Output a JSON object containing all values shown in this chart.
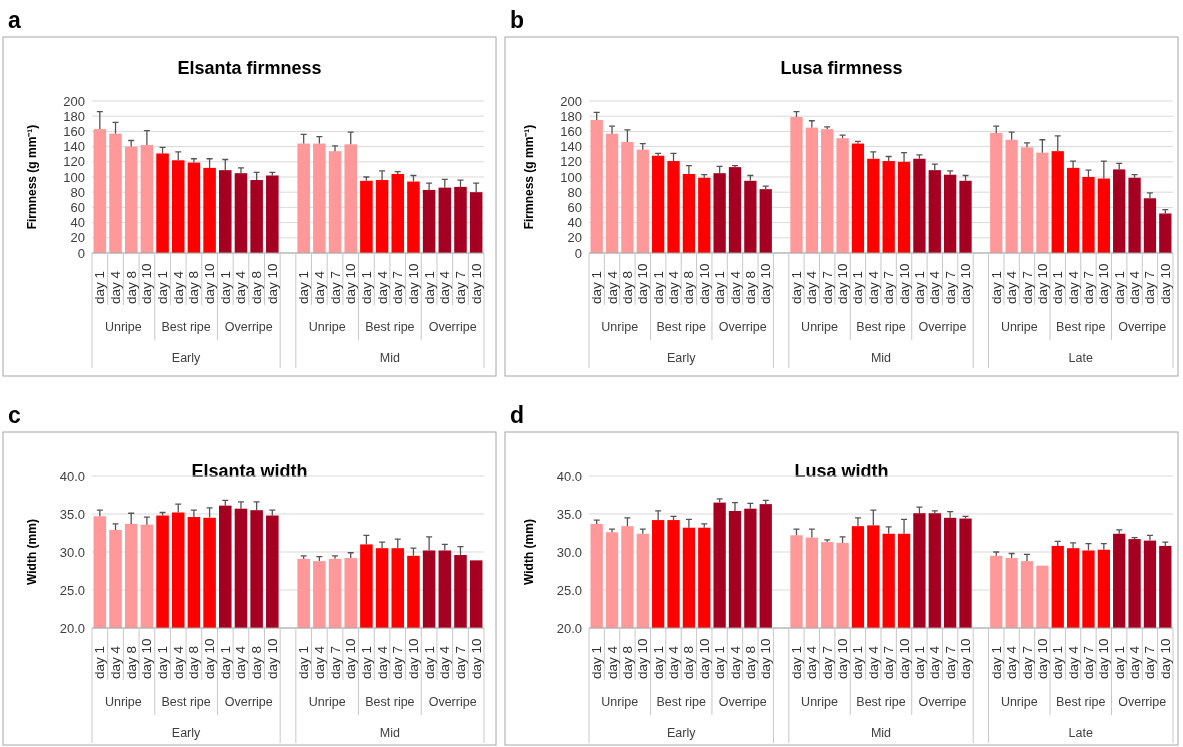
{
  "chart_data": [
    {
      "type": "bar",
      "title": "Elsanta firmness",
      "ylabel": "Firmness (g mm⁻¹)",
      "annotations": [
        "a",
        "Unripe",
        "Best ripe",
        "Overripe",
        "Early",
        "Unripe",
        "Best ripe",
        "Overripe",
        "Mid"
      ],
      "categories": [
        "day 1",
        "day 4",
        "day 8",
        "day 10",
        "day 1",
        "day 4",
        "day 8",
        "day 10",
        "day 1",
        "day 4",
        "day 8",
        "day 10",
        null,
        "day 1",
        "day 4",
        "day 7",
        "day 10",
        "day 1",
        "day 4",
        "day 7",
        "day 10",
        "day 1",
        "day 4",
        "day 7",
        "day 10"
      ],
      "values": [
        163,
        157,
        140,
        142,
        131,
        122,
        119,
        112,
        109,
        105,
        96,
        102,
        null,
        144,
        144,
        134,
        143,
        95,
        96,
        104,
        94,
        83,
        86,
        87,
        80
      ],
      "errors": [
        [
          163,
          186
        ],
        [
          157,
          172
        ],
        [
          140,
          148
        ],
        [
          142,
          161
        ],
        [
          131,
          139
        ],
        [
          122,
          133
        ],
        [
          119,
          124
        ],
        [
          112,
          124
        ],
        [
          109,
          123
        ],
        [
          105,
          112
        ],
        [
          96,
          106
        ],
        [
          102,
          106
        ],
        null,
        [
          144,
          156
        ],
        [
          144,
          153
        ],
        [
          134,
          141
        ],
        [
          143,
          159
        ],
        [
          95,
          100
        ],
        [
          96,
          108
        ],
        [
          104,
          107
        ],
        [
          94,
          102
        ],
        [
          83,
          92
        ],
        [
          86,
          97
        ],
        [
          87,
          96
        ],
        [
          80,
          92
        ]
      ],
      "colors": [
        "#ff9999",
        "#ff9999",
        "#ff9999",
        "#ff9999",
        "#ff0000",
        "#ff0000",
        "#ff0000",
        "#ff0000",
        "#a50021",
        "#a50021",
        "#a50021",
        "#a50021",
        null,
        "#ff9999",
        "#ff9999",
        "#ff9999",
        "#ff9999",
        "#ff0000",
        "#ff0000",
        "#ff0000",
        "#ff0000",
        "#a50021",
        "#a50021",
        "#a50021",
        "#a50021"
      ],
      "ylim": [
        0,
        200
      ],
      "yticks": [
        0,
        20,
        40,
        60,
        80,
        100,
        120,
        140,
        160,
        180,
        200
      ],
      "grid": "y"
    },
    {
      "type": "bar",
      "title": "Lusa firmness",
      "ylabel": "Firmness (g mm⁻¹)",
      "annotations": [
        "b",
        "Unripe",
        "Best ripe",
        "Overripe",
        "Early",
        "Unripe",
        "Best ripe",
        "Overripe",
        "Mid",
        "Unripe",
        "Best ripe",
        "Overripe",
        "Late"
      ],
      "categories": [
        "day 1",
        "day 4",
        "day 8",
        "day 10",
        "day 1",
        "day 4",
        "day 8",
        "day 10",
        "day 1",
        "day 4",
        "day 8",
        "day 10",
        null,
        "day 1",
        "day 4",
        "day 7",
        "day 10",
        "day 1",
        "day 4",
        "day 7",
        "day 10",
        "day 1",
        "day 4",
        "day 7",
        "day 10",
        null,
        "day 1",
        "day 4",
        "day 7",
        "day 10",
        "day 1",
        "day 4",
        "day 7",
        "day 10",
        "day 1",
        "day 4",
        "day 7",
        "day 10"
      ],
      "values": [
        175,
        157,
        146,
        136,
        128,
        121,
        104,
        99,
        105,
        113,
        95,
        84,
        null,
        179,
        165,
        163,
        151,
        144,
        124,
        121,
        120,
        124,
        109,
        103,
        95,
        null,
        158,
        149,
        139,
        132,
        134,
        112,
        100,
        98,
        110,
        99,
        72,
        52
      ],
      "errors": [
        [
          175,
          185
        ],
        [
          157,
          167
        ],
        [
          146,
          162
        ],
        [
          136,
          144
        ],
        [
          128,
          131
        ],
        [
          121,
          131
        ],
        [
          104,
          115
        ],
        [
          99,
          103
        ],
        [
          105,
          114
        ],
        [
          113,
          115
        ],
        [
          95,
          102
        ],
        [
          84,
          88
        ],
        null,
        [
          179,
          186
        ],
        [
          165,
          174
        ],
        [
          163,
          166
        ],
        [
          151,
          155
        ],
        [
          144,
          147
        ],
        [
          124,
          133
        ],
        [
          121,
          127
        ],
        [
          120,
          132
        ],
        [
          124,
          129
        ],
        [
          109,
          117
        ],
        [
          103,
          108
        ],
        [
          95,
          102
        ],
        null,
        [
          158,
          167
        ],
        [
          149,
          159
        ],
        [
          139,
          145
        ],
        [
          132,
          149
        ],
        [
          134,
          154
        ],
        [
          112,
          121
        ],
        [
          100,
          109
        ],
        [
          98,
          121
        ],
        [
          110,
          118
        ],
        [
          99,
          103
        ],
        [
          72,
          79
        ],
        [
          52,
          57
        ]
      ],
      "colors": [
        "#ff9999",
        "#ff9999",
        "#ff9999",
        "#ff9999",
        "#ff0000",
        "#ff0000",
        "#ff0000",
        "#ff0000",
        "#a50021",
        "#a50021",
        "#a50021",
        "#a50021",
        null,
        "#ff9999",
        "#ff9999",
        "#ff9999",
        "#ff9999",
        "#ff0000",
        "#ff0000",
        "#ff0000",
        "#ff0000",
        "#a50021",
        "#a50021",
        "#a50021",
        "#a50021",
        null,
        "#ff9999",
        "#ff9999",
        "#ff9999",
        "#ff9999",
        "#ff0000",
        "#ff0000",
        "#ff0000",
        "#ff0000",
        "#a50021",
        "#a50021",
        "#a50021",
        "#a50021"
      ],
      "ylim": [
        0,
        200
      ],
      "yticks": [
        0,
        20,
        40,
        60,
        80,
        100,
        120,
        140,
        160,
        180,
        200
      ],
      "grid": "y"
    },
    {
      "type": "bar",
      "title": "Elsanta width",
      "ylabel": "Width (mm)",
      "annotations": [
        "c",
        "Unripe",
        "Best ripe",
        "Overripe",
        "Early",
        "Unripe",
        "Best ripe",
        "Overripe",
        "Mid"
      ],
      "categories": [
        "day 1",
        "day 4",
        "day 8",
        "day 10",
        "day 1",
        "day 4",
        "day 8",
        "day 10",
        "day 1",
        "day 4",
        "day 8",
        "day 10",
        null,
        "day 1",
        "day 4",
        "day 7",
        "day 10",
        "day 1",
        "day 4",
        "day 7",
        "day 10",
        "day 1",
        "day 4",
        "day 7",
        "day 10"
      ],
      "values": [
        34.7,
        32.9,
        33.7,
        33.6,
        34.8,
        35.2,
        34.6,
        34.5,
        36.1,
        35.7,
        35.5,
        34.8,
        null,
        29.1,
        28.8,
        29.1,
        29.2,
        31.0,
        30.5,
        30.5,
        29.5,
        30.2,
        30.2,
        29.6,
        28.9
      ],
      "errors": [
        [
          34.7,
          35.5
        ],
        [
          32.9,
          33.7
        ],
        [
          33.7,
          35.1
        ],
        [
          33.6,
          34.6
        ],
        [
          34.8,
          35.2
        ],
        [
          35.2,
          36.3
        ],
        [
          34.6,
          35.5
        ],
        [
          34.5,
          35.8
        ],
        [
          36.1,
          36.8
        ],
        [
          35.7,
          36.6
        ],
        [
          35.5,
          36.6
        ],
        [
          34.8,
          35.5
        ],
        null,
        [
          29.1,
          29.5
        ],
        [
          28.8,
          29.4
        ],
        [
          29.1,
          29.5
        ],
        [
          29.2,
          29.9
        ],
        [
          31.0,
          32.2
        ],
        [
          30.5,
          31.3
        ],
        [
          30.5,
          31.7
        ],
        [
          29.5,
          30.5
        ],
        [
          30.2,
          32.0
        ],
        [
          30.2,
          31.0
        ],
        [
          29.6,
          30.7
        ],
        null
      ],
      "colors": [
        "#ff9999",
        "#ff9999",
        "#ff9999",
        "#ff9999",
        "#ff0000",
        "#ff0000",
        "#ff0000",
        "#ff0000",
        "#a50021",
        "#a50021",
        "#a50021",
        "#a50021",
        null,
        "#ff9999",
        "#ff9999",
        "#ff9999",
        "#ff9999",
        "#ff0000",
        "#ff0000",
        "#ff0000",
        "#ff0000",
        "#a50021",
        "#a50021",
        "#a50021",
        "#a50021"
      ],
      "ylim": [
        20,
        40
      ],
      "yticks": [
        {
          "value": 20,
          "label": "20.0"
        },
        {
          "value": 25,
          "label": "25.0"
        },
        {
          "value": 30,
          "label": "30.0"
        },
        {
          "value": 35,
          "label": "35.0"
        },
        {
          "value": 40,
          "label": "40.0"
        }
      ],
      "grid": "y"
    },
    {
      "type": "bar",
      "title": "Lusa width",
      "ylabel": "Width (mm)",
      "annotations": [
        "d",
        "Unripe",
        "Best ripe",
        "Overripe",
        "Early",
        "Unripe",
        "Best ripe",
        "Overripe",
        "Mid",
        "Unripe",
        "Best ripe",
        "Overripe",
        "Late"
      ],
      "categories": [
        "day 1",
        "day 4",
        "day 8",
        "day 10",
        "day 1",
        "day 4",
        "day 8",
        "day 10",
        "day 1",
        "day 4",
        "day 8",
        "day 10",
        null,
        "day 1",
        "day 4",
        "day 7",
        "day 10",
        "day 1",
        "day 4",
        "day 7",
        "day 10",
        "day 1",
        "day 4",
        "day 7",
        "day 10",
        null,
        "day 1",
        "day 4",
        "day 7",
        "day 10",
        "day 1",
        "day 4",
        "day 7",
        "day 10",
        "day 1",
        "day 4",
        "day 7",
        "day 10"
      ],
      "values": [
        33.7,
        32.6,
        33.4,
        32.4,
        34.2,
        34.2,
        33.2,
        33.2,
        36.5,
        35.4,
        35.7,
        36.3,
        null,
        32.2,
        31.9,
        31.3,
        31.2,
        33.4,
        33.5,
        32.4,
        32.4,
        35.1,
        35.1,
        34.5,
        34.4,
        null,
        29.5,
        29.2,
        28.8,
        28.2,
        30.8,
        30.5,
        30.2,
        30.3,
        32.4,
        31.7,
        31.5,
        30.8
      ],
      "errors": [
        [
          33.7,
          34.2
        ],
        [
          32.6,
          33.0
        ],
        [
          33.4,
          34.5
        ],
        [
          32.4,
          33.0
        ],
        [
          34.2,
          35.4
        ],
        [
          34.2,
          34.7
        ],
        [
          33.2,
          34.3
        ],
        [
          33.2,
          33.7
        ],
        [
          36.5,
          37.0
        ],
        [
          35.4,
          36.5
        ],
        [
          35.7,
          36.4
        ],
        [
          36.3,
          36.8
        ],
        null,
        [
          32.2,
          33.0
        ],
        [
          31.9,
          33.0
        ],
        [
          31.3,
          31.6
        ],
        [
          31.2,
          32.0
        ],
        [
          33.4,
          34.5
        ],
        [
          33.5,
          35.5
        ],
        [
          32.4,
          33.3
        ],
        [
          32.4,
          34.3
        ],
        [
          35.1,
          35.9
        ],
        [
          35.1,
          35.4
        ],
        [
          34.5,
          35.3
        ],
        [
          34.4,
          34.7
        ],
        null,
        [
          29.5,
          30.0
        ],
        [
          29.2,
          29.8
        ],
        [
          28.8,
          29.7
        ],
        null,
        [
          30.8,
          31.4
        ],
        [
          30.5,
          31.2
        ],
        [
          30.2,
          31.1
        ],
        [
          30.3,
          31.1
        ],
        [
          32.4,
          32.9
        ],
        [
          31.7,
          31.9
        ],
        [
          31.5,
          32.2
        ],
        [
          30.8,
          31.3
        ]
      ],
      "colors": [
        "#ff9999",
        "#ff9999",
        "#ff9999",
        "#ff9999",
        "#ff0000",
        "#ff0000",
        "#ff0000",
        "#ff0000",
        "#a50021",
        "#a50021",
        "#a50021",
        "#a50021",
        null,
        "#ff9999",
        "#ff9999",
        "#ff9999",
        "#ff9999",
        "#ff0000",
        "#ff0000",
        "#ff0000",
        "#ff0000",
        "#a50021",
        "#a50021",
        "#a50021",
        "#a50021",
        null,
        "#ff9999",
        "#ff9999",
        "#ff9999",
        "#ff9999",
        "#ff0000",
        "#ff0000",
        "#ff0000",
        "#ff0000",
        "#a50021",
        "#a50021",
        "#a50021",
        "#a50021"
      ],
      "ylim": [
        20,
        40
      ],
      "yticks": [
        {
          "value": 20,
          "label": "20.0"
        },
        {
          "value": 25,
          "label": "25.0"
        },
        {
          "value": 30,
          "label": "30.0"
        },
        {
          "value": 35,
          "label": "35.0"
        },
        {
          "value": 40,
          "label": "40.0"
        }
      ],
      "grid": "y"
    }
  ]
}
